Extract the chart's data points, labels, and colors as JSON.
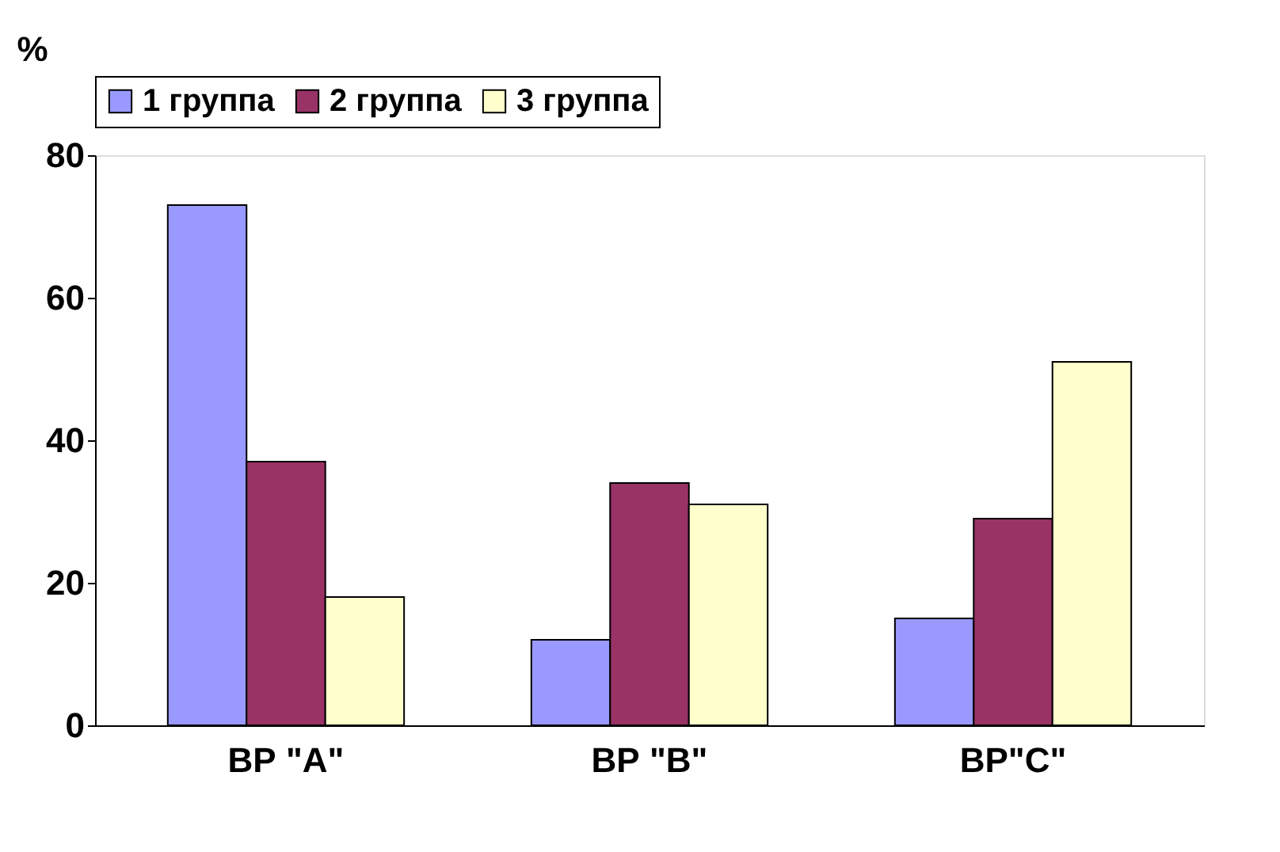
{
  "chart_data": {
    "type": "bar",
    "ylabel": "%",
    "categories": [
      "ВР \"А\"",
      "ВР \"В\"",
      "ВР\"С\""
    ],
    "series": [
      {
        "name": "1 группа",
        "color": "#9999ff",
        "values": [
          73,
          12,
          15
        ]
      },
      {
        "name": "2 группа",
        "color": "#993366",
        "values": [
          37,
          34,
          29
        ]
      },
      {
        "name": "3 группа",
        "color": "#ffffcc",
        "values": [
          18,
          31,
          51
        ]
      }
    ],
    "ylim": [
      0,
      80
    ],
    "yticks": [
      0,
      20,
      40,
      60,
      80
    ],
    "grid": false,
    "legend": "top"
  }
}
